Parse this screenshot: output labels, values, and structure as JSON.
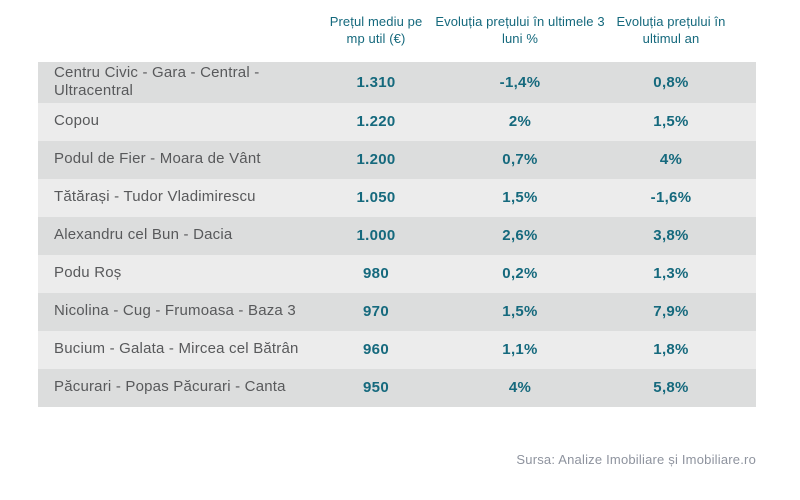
{
  "chart_data": {
    "type": "table",
    "columns": {
      "neighborhood": "",
      "price": "Prețul mediu pe mp util (€)",
      "change_3m": "Evoluția prețului în ultimele 3 luni %",
      "change_1y": "Evoluția prețului în ultimul an"
    },
    "rows": [
      {
        "name": "Centru Civic - Gara - Central - Ultracentral",
        "price": "1.310",
        "change_3m": "-1,4%",
        "change_1y": "0,8%"
      },
      {
        "name": "Copou",
        "price": "1.220",
        "change_3m": "2%",
        "change_1y": "1,5%"
      },
      {
        "name": "Podul de Fier - Moara de Vânt",
        "price": "1.200",
        "change_3m": "0,7%",
        "change_1y": "4%"
      },
      {
        "name": "Tătărași - Tudor Vladimirescu",
        "price": "1.050",
        "change_3m": "1,5%",
        "change_1y": "-1,6%"
      },
      {
        "name": "Alexandru cel Bun - Dacia",
        "price": "1.000",
        "change_3m": "2,6%",
        "change_1y": "3,8%"
      },
      {
        "name": "Podu Roș",
        "price": "980",
        "change_3m": "0,2%",
        "change_1y": "1,3%"
      },
      {
        "name": "Nicolina - Cug - Frumoasa - Baza 3",
        "price": "970",
        "change_3m": "1,5%",
        "change_1y": "7,9%"
      },
      {
        "name": "Bucium - Galata - Mircea cel Bătrân",
        "price": "960",
        "change_3m": "1,1%",
        "change_1y": "1,8%"
      },
      {
        "name": "Păcurari - Popas Păcurari - Canta",
        "price": "950",
        "change_3m": "4%",
        "change_1y": "5,8%"
      }
    ],
    "layout": {
      "row_striping": "alternating",
      "value_alignment": "center"
    }
  },
  "footer": {
    "source": "Sursa: Analize Imobiliare și Imobiliare.ro"
  },
  "colors": {
    "accent_teal": "#15697d",
    "row_dark": "#dcdddd",
    "row_light": "#ececec",
    "name_text": "#58595b",
    "source_text": "#8e939e",
    "background": "#ffffff"
  }
}
